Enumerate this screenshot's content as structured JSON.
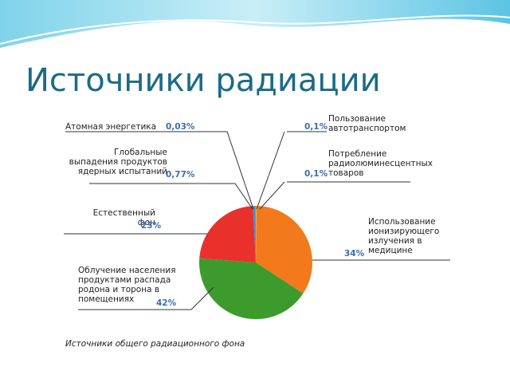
{
  "title": "Источники радиации",
  "chart_data": {
    "type": "pie",
    "caption": "Источники общего радиационного фона",
    "categories": [
      "Пользование автотранспортом",
      "Потребление радиолюминесцентных товаров",
      "Использование ионизирующего излучения в медицине",
      "Облучение населения продуктами распада родона и торона в помещениях",
      "Естественный фон",
      "Глобальные выпадения продуктов ядерных испытаний",
      "Атомная энергетика"
    ],
    "values": [
      0.1,
      0.1,
      34,
      42,
      23,
      0.77,
      0.03
    ],
    "value_labels": [
      "0,1%",
      "0,1%",
      "34%",
      "42%",
      "23%",
      "0,77%",
      "0,03%"
    ],
    "colors": [
      "#f6c02a",
      "#f7a21c",
      "#f27a1c",
      "#3c9b2c",
      "#e8312a",
      "#3b8fd9",
      "#5fb0e8"
    ]
  }
}
